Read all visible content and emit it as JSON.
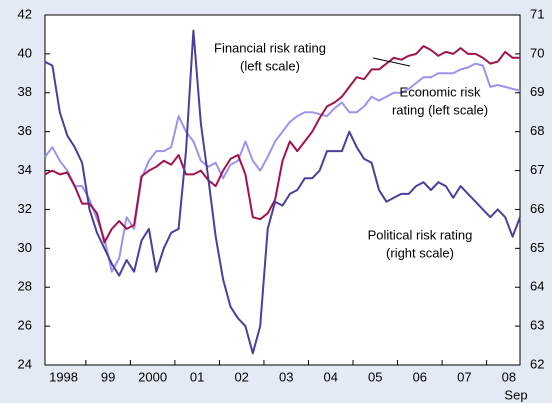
{
  "chart_data": {
    "type": "line",
    "categories": [
      null,
      null,
      null,
      "1998",
      null,
      null,
      null,
      null,
      null,
      "99",
      null,
      null,
      null,
      null,
      null,
      "2000",
      null,
      null,
      null,
      null,
      null,
      "01",
      null,
      null,
      null,
      null,
      null,
      "02",
      null,
      null,
      null,
      null,
      null,
      "03",
      null,
      null,
      null,
      null,
      null,
      "04",
      null,
      null,
      null,
      null,
      null,
      "05",
      null,
      null,
      null,
      null,
      null,
      "06",
      null,
      null,
      null,
      null,
      null,
      "07",
      null,
      null,
      null,
      null,
      null,
      "08",
      null
    ],
    "x_note": "Sep",
    "ylim": [
      24,
      42
    ],
    "yticks": [
      24,
      26,
      28,
      30,
      32,
      34,
      36,
      38,
      40,
      42
    ],
    "y2lim": [
      62,
      71
    ],
    "y2ticks": [
      62,
      63,
      64,
      65,
      66,
      67,
      68,
      69,
      70,
      71
    ],
    "series": [
      {
        "name": "Economic risk rating (left scale)",
        "color": "#9b93ee",
        "values": [
          34.7,
          35.2,
          34.5,
          34,
          33.2,
          33.2,
          32.5,
          31.5,
          30.5,
          28.8,
          29.5,
          31.6,
          31,
          33.6,
          34.5,
          35,
          35,
          35.2,
          36.8,
          36,
          35.5,
          34.5,
          34.2,
          34.4,
          33.6,
          34.3,
          34.5,
          35.5,
          34.5,
          34,
          34.7,
          35.5,
          36,
          36.5,
          36.8,
          37,
          37,
          36.9,
          36.8,
          37.2,
          37.5,
          37,
          37,
          37.3,
          37.8,
          37.6,
          37.8,
          38,
          38,
          38.2,
          38.5,
          38.8,
          38.8,
          39,
          39,
          39,
          39.2,
          39.3,
          39.5,
          39.4,
          38.3,
          38.4,
          38.3,
          38.2,
          38.1
        ]
      },
      {
        "name": "Financial risk rating (left scale)",
        "color": "#a0124e",
        "values": [
          33.8,
          34,
          33.8,
          33.9,
          33.2,
          32.3,
          32.3,
          31.8,
          30.3,
          31,
          31.4,
          31,
          31.2,
          33.7,
          34,
          34.2,
          34.5,
          34.3,
          34.8,
          33.8,
          33.8,
          34,
          33.5,
          33.2,
          34,
          34.6,
          34.8,
          33.8,
          31.6,
          31.5,
          31.8,
          32.5,
          34.5,
          35.5,
          35,
          35.5,
          36,
          36.7,
          37.3,
          37.5,
          37.8,
          38.3,
          38.8,
          38.7,
          39.2,
          39.2,
          39.5,
          39.8,
          39.7,
          39.9,
          40,
          40.4,
          40.2,
          39.9,
          40.1,
          40,
          40.3,
          40,
          40,
          39.8,
          39.5,
          39.6,
          40.1,
          39.8,
          39.8
        ]
      },
      {
        "name": "Political risk rating (right scale)",
        "color": "#4a3f9a",
        "axis": "y2",
        "values": [
          69.8,
          69.7,
          68.5,
          67.9,
          67.6,
          67.2,
          66,
          65.4,
          65,
          64.6,
          64.3,
          64.7,
          64.4,
          65.2,
          65.5,
          64.4,
          65,
          65.4,
          65.5,
          67.5,
          70.6,
          68.2,
          66.8,
          65.3,
          64.2,
          63.5,
          63.2,
          63,
          62.3,
          63,
          65.5,
          66.2,
          66.1,
          66.4,
          66.5,
          66.8,
          66.8,
          67,
          67.5,
          67.5,
          67.5,
          68,
          67.6,
          67.3,
          67.2,
          66.5,
          66.2,
          66.3,
          66.4,
          66.4,
          66.6,
          66.7,
          66.5,
          66.7,
          66.6,
          66.3,
          66.6,
          66.4,
          66.2,
          66,
          65.8,
          66,
          65.8,
          65.3,
          65.8
        ]
      }
    ],
    "annotations": [
      {
        "lines": [
          "Financial risk rating",
          "(left scale)"
        ]
      },
      {
        "lines": [
          "Economic risk",
          "rating (left scale)"
        ]
      },
      {
        "lines": [
          "Political risk rating",
          "(right scale)"
        ]
      }
    ]
  }
}
